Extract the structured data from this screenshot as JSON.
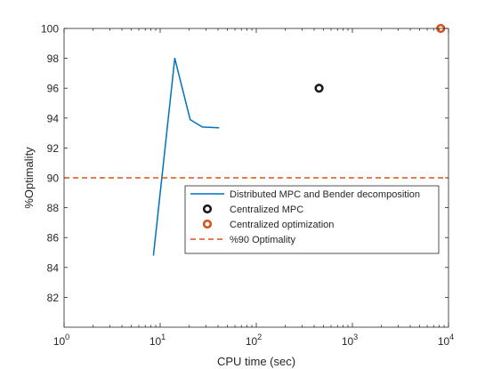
{
  "chart_data": {
    "type": "line",
    "xlabel": "CPU time (sec)",
    "ylabel": "%Optimality",
    "xscale": "log",
    "xlim": [
      1,
      10000
    ],
    "ylim": [
      80,
      100
    ],
    "x_ticks": [
      {
        "value": 1,
        "base": "10",
        "exp": "0"
      },
      {
        "value": 10,
        "base": "10",
        "exp": "1"
      },
      {
        "value": 100,
        "base": "10",
        "exp": "2"
      },
      {
        "value": 1000,
        "base": "10",
        "exp": "3"
      },
      {
        "value": 10000,
        "base": "10",
        "exp": "4"
      }
    ],
    "y_ticks": [
      82,
      84,
      86,
      88,
      90,
      92,
      94,
      96,
      98,
      100
    ],
    "grid": false,
    "legend_position": "center-right",
    "series": [
      {
        "name": "Distributed MPC and Bender decomposition",
        "kind": "line",
        "color": "#0072BD",
        "x": [
          8.5,
          14.2,
          20.5,
          27.5,
          41.0
        ],
        "y": [
          84.8,
          98.0,
          93.9,
          93.4,
          93.35
        ]
      },
      {
        "name": "Centralized MPC",
        "kind": "marker",
        "color": "#1a1a1a",
        "x": [
          450
        ],
        "y": [
          96.0
        ]
      },
      {
        "name": "Centralized optimization",
        "kind": "marker",
        "color": "#D95319",
        "x": [
          8300
        ],
        "y": [
          100.0
        ]
      },
      {
        "name": "%90 Optimality",
        "kind": "hline",
        "color": "#D95319",
        "y": 90
      }
    ]
  }
}
